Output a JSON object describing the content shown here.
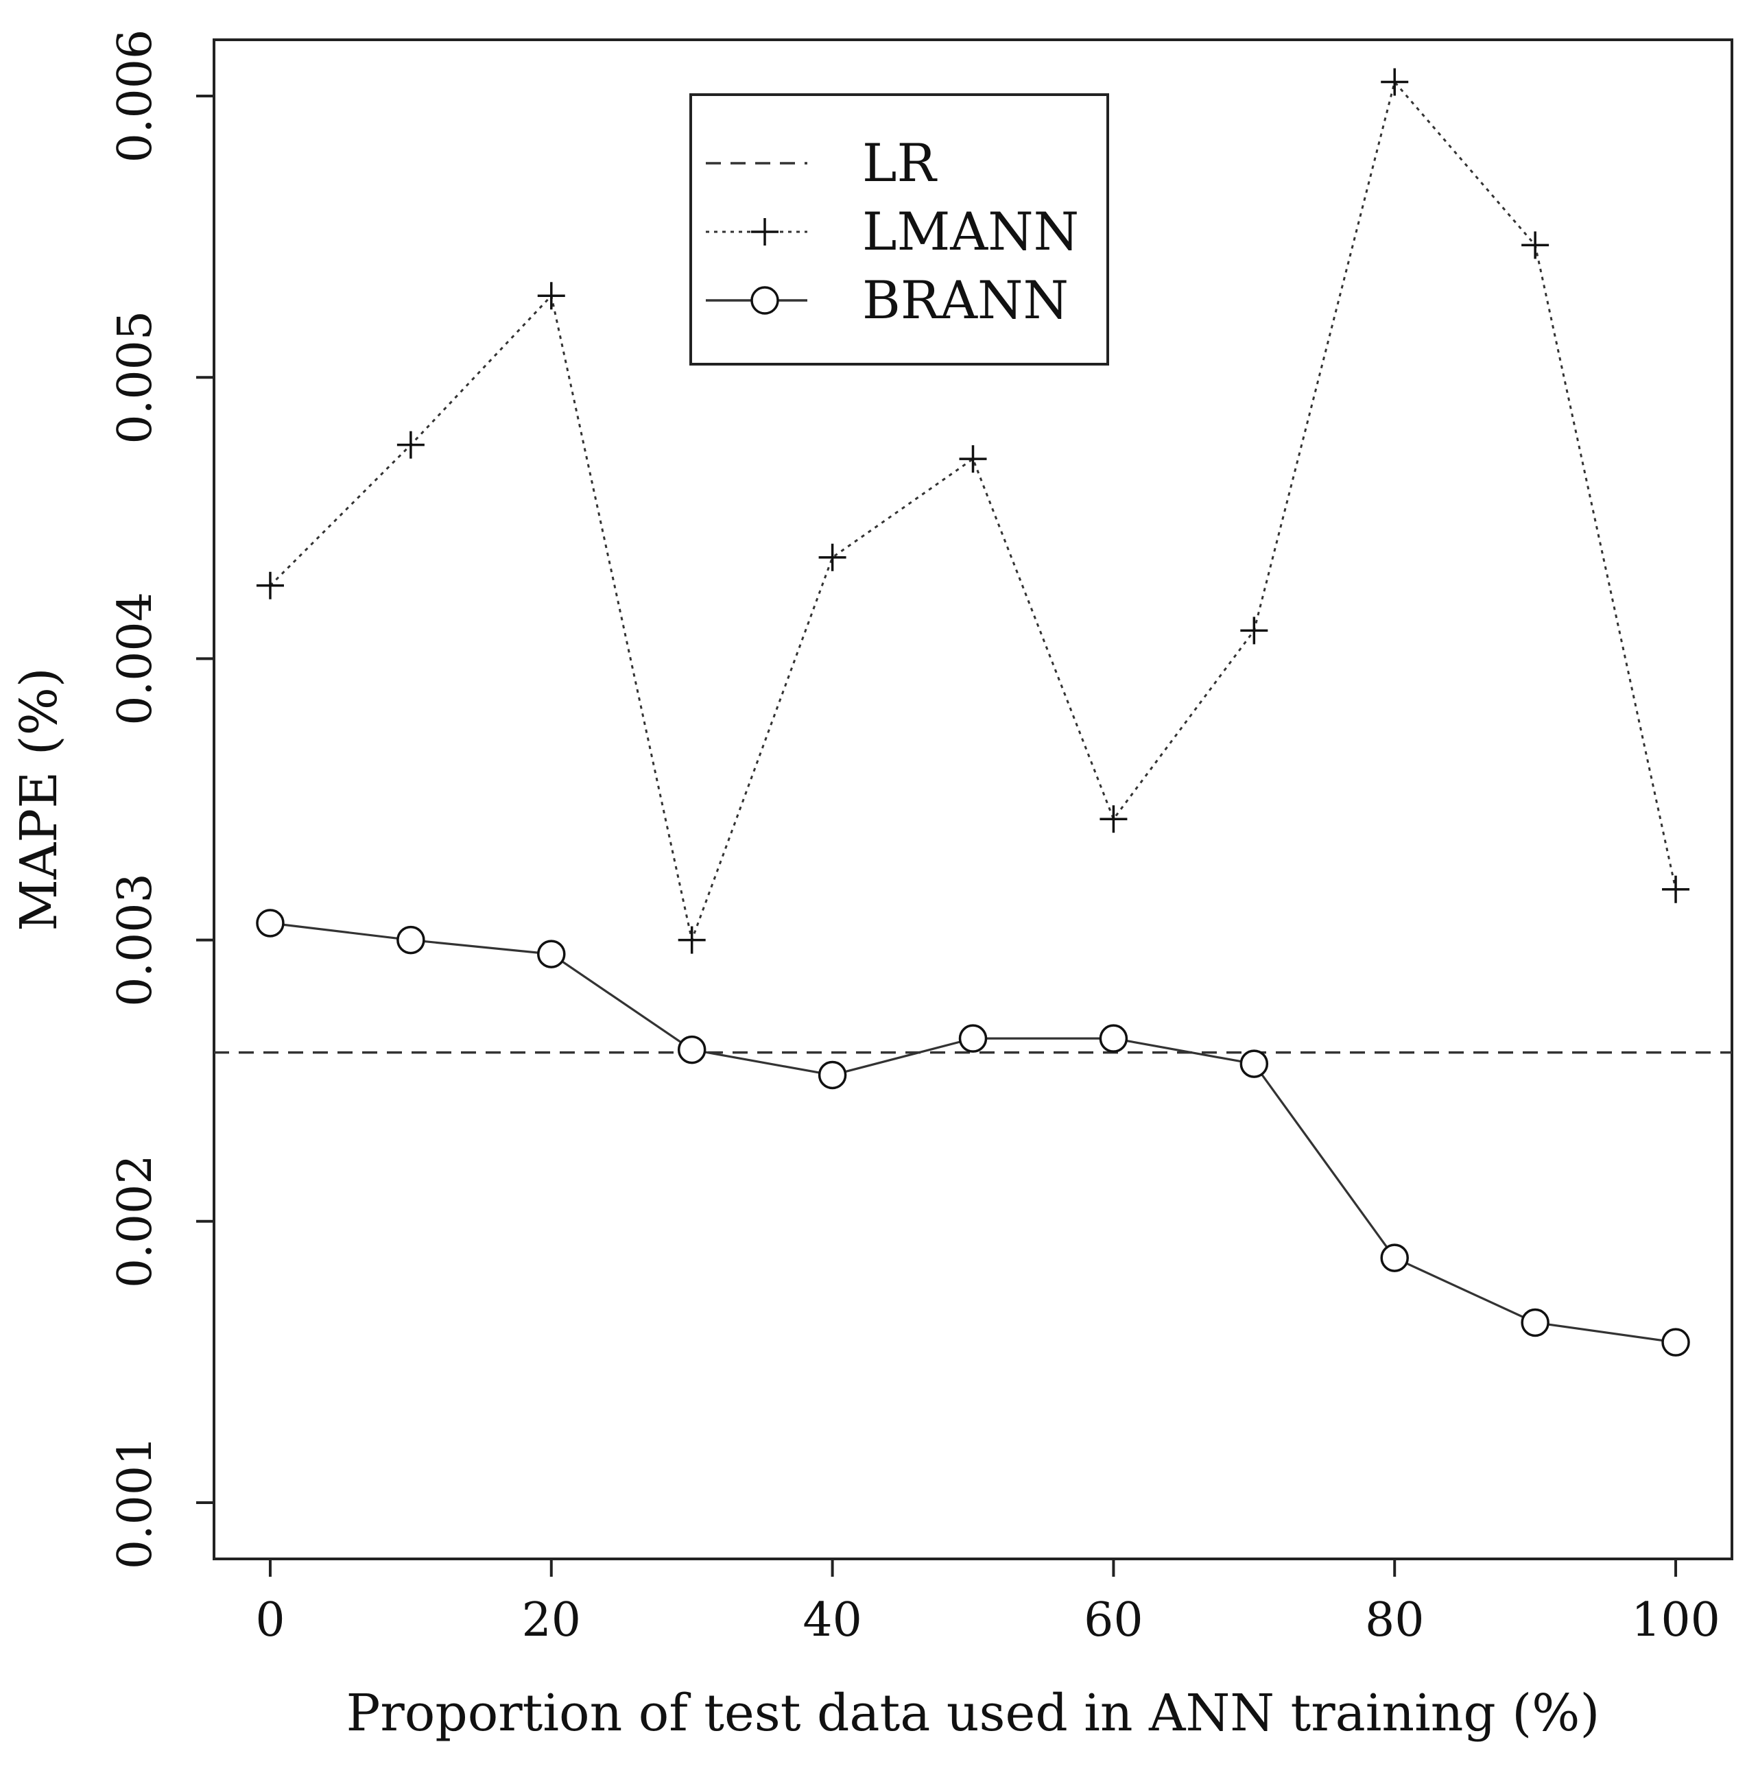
{
  "chart_data": {
    "type": "line",
    "title": "",
    "xlabel": "Proportion of test data used in ANN training (%)",
    "ylabel": "MAPE (%)",
    "xlim": [
      -4,
      104
    ],
    "ylim": [
      0.0008,
      0.0062
    ],
    "x_ticks": [
      0,
      20,
      40,
      60,
      80,
      100
    ],
    "x_tick_labels": [
      "0",
      "20",
      "40",
      "60",
      "80",
      "100"
    ],
    "y_ticks": [
      0.001,
      0.002,
      0.003,
      0.004,
      0.005,
      0.006
    ],
    "y_tick_labels": [
      "0.001",
      "0.002",
      "0.003",
      "0.004",
      "0.005",
      "0.006"
    ],
    "x": [
      0,
      10,
      20,
      30,
      40,
      50,
      60,
      70,
      80,
      90,
      100
    ],
    "grid": false,
    "legend_position": "top-center",
    "series": [
      {
        "name": "LR",
        "style": "dashed",
        "marker": "none",
        "values": [
          0.0026,
          0.0026,
          0.0026,
          0.0026,
          0.0026,
          0.0026,
          0.0026,
          0.0026,
          0.0026,
          0.0026,
          0.0026
        ]
      },
      {
        "name": "LMANN",
        "style": "dotted",
        "marker": "plus",
        "values": [
          0.00426,
          0.00476,
          0.00529,
          0.003,
          0.00436,
          0.00471,
          0.00343,
          0.0041,
          0.00605,
          0.00547,
          0.00318
        ]
      },
      {
        "name": "BRANN",
        "style": "solid",
        "marker": "circle",
        "values": [
          0.00306,
          0.003,
          0.00295,
          0.00261,
          0.00252,
          0.00265,
          0.00265,
          0.00256,
          0.00187,
          0.00164,
          0.00157
        ]
      }
    ],
    "colors": {
      "line": "#333333",
      "frame": "#222222"
    }
  }
}
